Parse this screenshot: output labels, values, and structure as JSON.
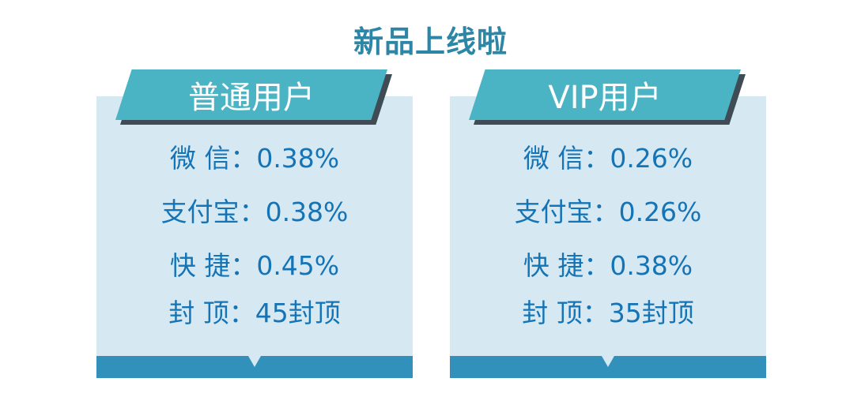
{
  "title": "新品上线啦",
  "cards": [
    {
      "label": "普通用户",
      "rows": [
        {
          "text": "微  信：0.38%"
        },
        {
          "text": "支付宝：0.38%"
        },
        {
          "text": "快  捷：0.45%"
        },
        {
          "text": "封  顶：45封顶"
        }
      ]
    },
    {
      "label": "VIP用户",
      "rows": [
        {
          "text": "微  信：0.26%"
        },
        {
          "text": "支付宝：0.26%"
        },
        {
          "text": "快  捷：0.38%"
        },
        {
          "text": "封  顶：35封顶"
        }
      ]
    }
  ],
  "colors": {
    "title": "#2e86a6",
    "banner": "#4ab3c4",
    "card_bg": "#d6e9f3",
    "row_text": "#1574b5",
    "footer_bar": "#3291bb"
  }
}
